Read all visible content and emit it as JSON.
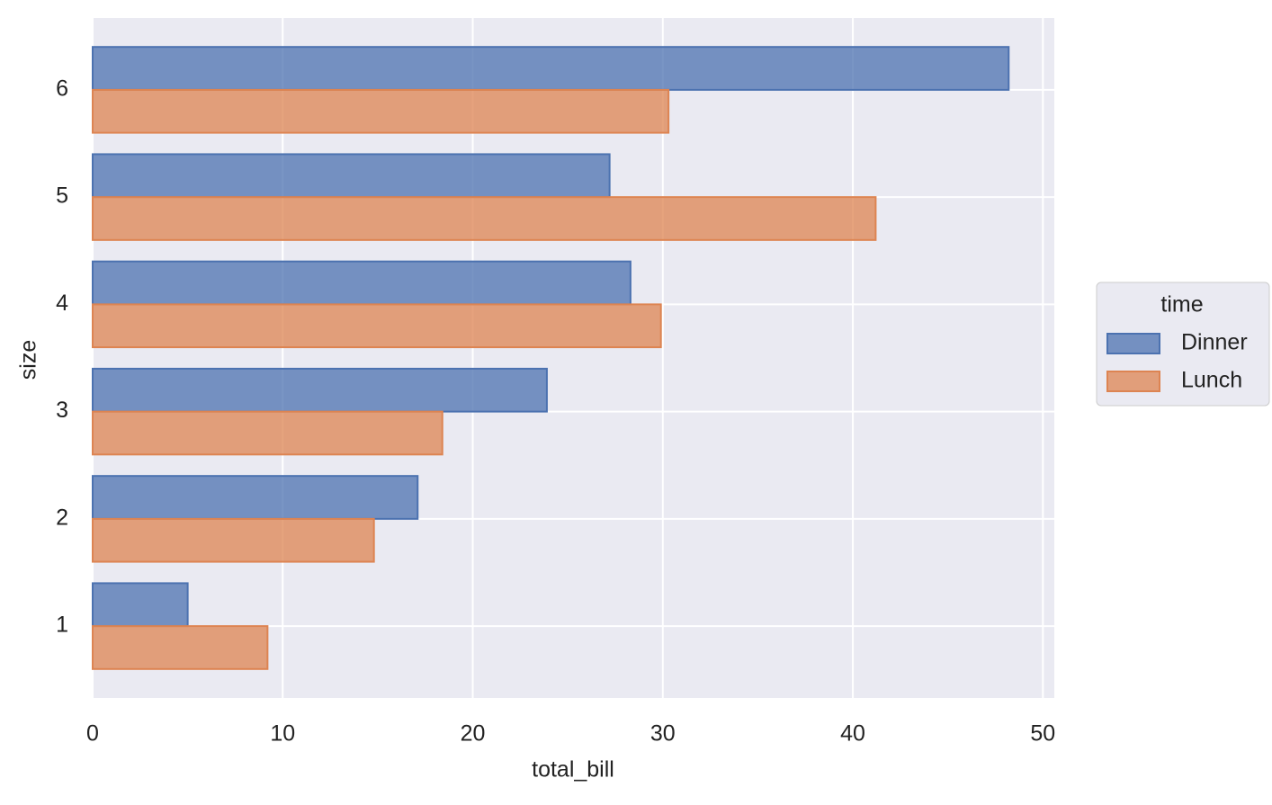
{
  "chart_data": {
    "type": "barh",
    "x_label": "total_bill",
    "y_label": "size",
    "categories": [
      "1",
      "2",
      "3",
      "4",
      "5",
      "6"
    ],
    "series": [
      {
        "name": "Dinner",
        "color": "#4c72b0",
        "values": [
          5.0,
          17.1,
          23.9,
          28.3,
          27.2,
          48.2
        ]
      },
      {
        "name": "Lunch",
        "color": "#dd8452",
        "values": [
          9.2,
          14.8,
          18.4,
          29.9,
          41.2,
          30.3
        ]
      }
    ],
    "xlim": [
      0,
      50.6
    ],
    "xticks": [
      0,
      10,
      20,
      30,
      40,
      50
    ],
    "grid": true,
    "legend_title": "time",
    "legend_position": "right"
  }
}
